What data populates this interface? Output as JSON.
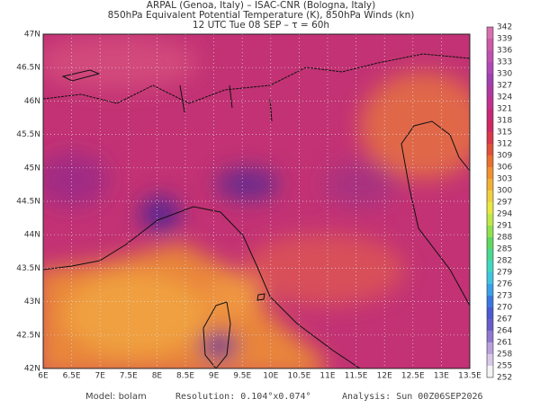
{
  "header": {
    "lines": [
      "ARPAL (Genoa, Italy)  –  ISAC-CNR (Bologna, Italy)",
      "850hPa Equivalent Potential Temperature (K), 850hPa Winds (kn)",
      "12 UTC Tue 08 SEP  –  τ = 60h"
    ]
  },
  "map": {
    "x_labels": [
      "6E",
      "6.5E",
      "7E",
      "7.5E",
      "8E",
      "8.5E",
      "9E",
      "9.5E",
      "10E",
      "10.5E",
      "11E",
      "11.5E",
      "12E",
      "12.5E",
      "13E",
      "13.5E"
    ],
    "y_labels": [
      "42N",
      "42.5N",
      "43N",
      "43.5N",
      "44N",
      "44.5N",
      "45N",
      "45.5N",
      "46N",
      "46.5N",
      "47N"
    ]
  },
  "colorbar": {
    "labels": [
      252,
      255,
      258,
      261,
      264,
      267,
      270,
      273,
      276,
      279,
      282,
      285,
      288,
      291,
      294,
      297,
      300,
      303,
      306,
      309,
      312,
      315,
      318,
      321,
      324,
      327,
      330,
      333,
      336,
      339,
      342
    ]
  },
  "footer": {
    "model": "Model: bolam",
    "resolution": "Resolution: 0.104°x0.074°",
    "analysis": "Analysis: Sun 00Z06SEP2026"
  }
}
